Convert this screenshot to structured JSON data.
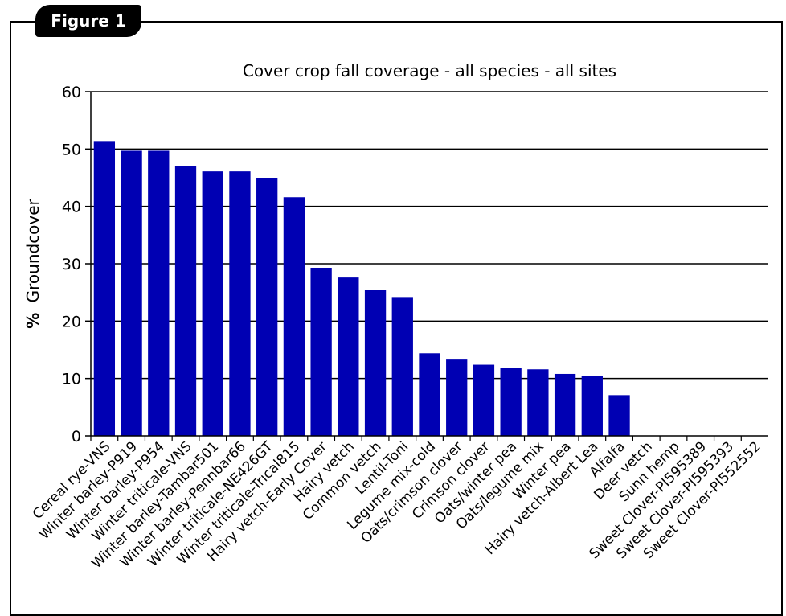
{
  "figure_label": "Figure 1",
  "chart_data": {
    "type": "bar",
    "title": "Cover crop fall coverage - all species - all sites",
    "ylabel_bold": "%",
    "ylabel": "Groundcover",
    "xlabel": "",
    "ylim": [
      0,
      60
    ],
    "yticks": [
      0,
      10,
      20,
      30,
      40,
      50,
      60
    ],
    "grid": true,
    "bar_color": "#0000b3",
    "categories": [
      "Cereal rye-VNS",
      "Winter barley-P919",
      "Winter barley-P954",
      "Winter triticale-VNS",
      "Winter barley-Tambar501",
      "Winter barley-Pennbar66",
      "Winter triticale-NE426GT",
      "Winter triticale-Trical815",
      "Hairy vetch-Early Cover",
      "Hairy vetch",
      "Common vetch",
      "Lentil-Toni",
      "Legume mix-cold",
      "Oats/crimson clover",
      "Crimson clover",
      "Oats/winter pea",
      "Oats/legume mix",
      "Winter pea",
      "Hairy vetch-Albert Lea",
      "Alfalfa",
      "Deer vetch",
      "Sunn hemp",
      "Sweet Clover-PI595389",
      "Sweet Clover-PI595393",
      "Sweet Clover-PI552552"
    ],
    "values": [
      51.4,
      49.7,
      49.7,
      47.0,
      46.1,
      46.1,
      45.0,
      41.6,
      29.3,
      27.6,
      25.4,
      24.2,
      14.4,
      13.3,
      12.4,
      11.9,
      11.6,
      10.8,
      10.5,
      7.1,
      0,
      0,
      0,
      0,
      0
    ]
  }
}
